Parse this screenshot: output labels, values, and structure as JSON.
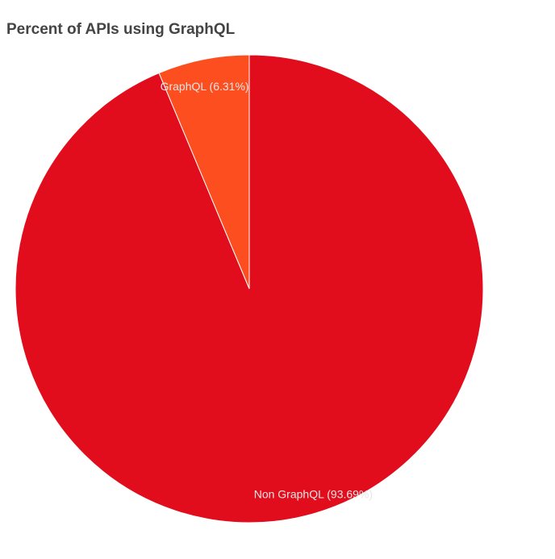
{
  "chart_data": {
    "type": "pie",
    "title": "Percent of APIs using GraphQL",
    "slices": [
      {
        "label": "GraphQL (6.31%)",
        "value": 6.31,
        "color": "#fc4e1f"
      },
      {
        "label": "Non GraphQL (93.69%)",
        "value": 93.69,
        "color": "#e20d1c"
      }
    ],
    "start_angle": "12 o'clock",
    "direction": "counter-clockwise",
    "slice_border_color": "#ffffff",
    "legend": "none"
  }
}
